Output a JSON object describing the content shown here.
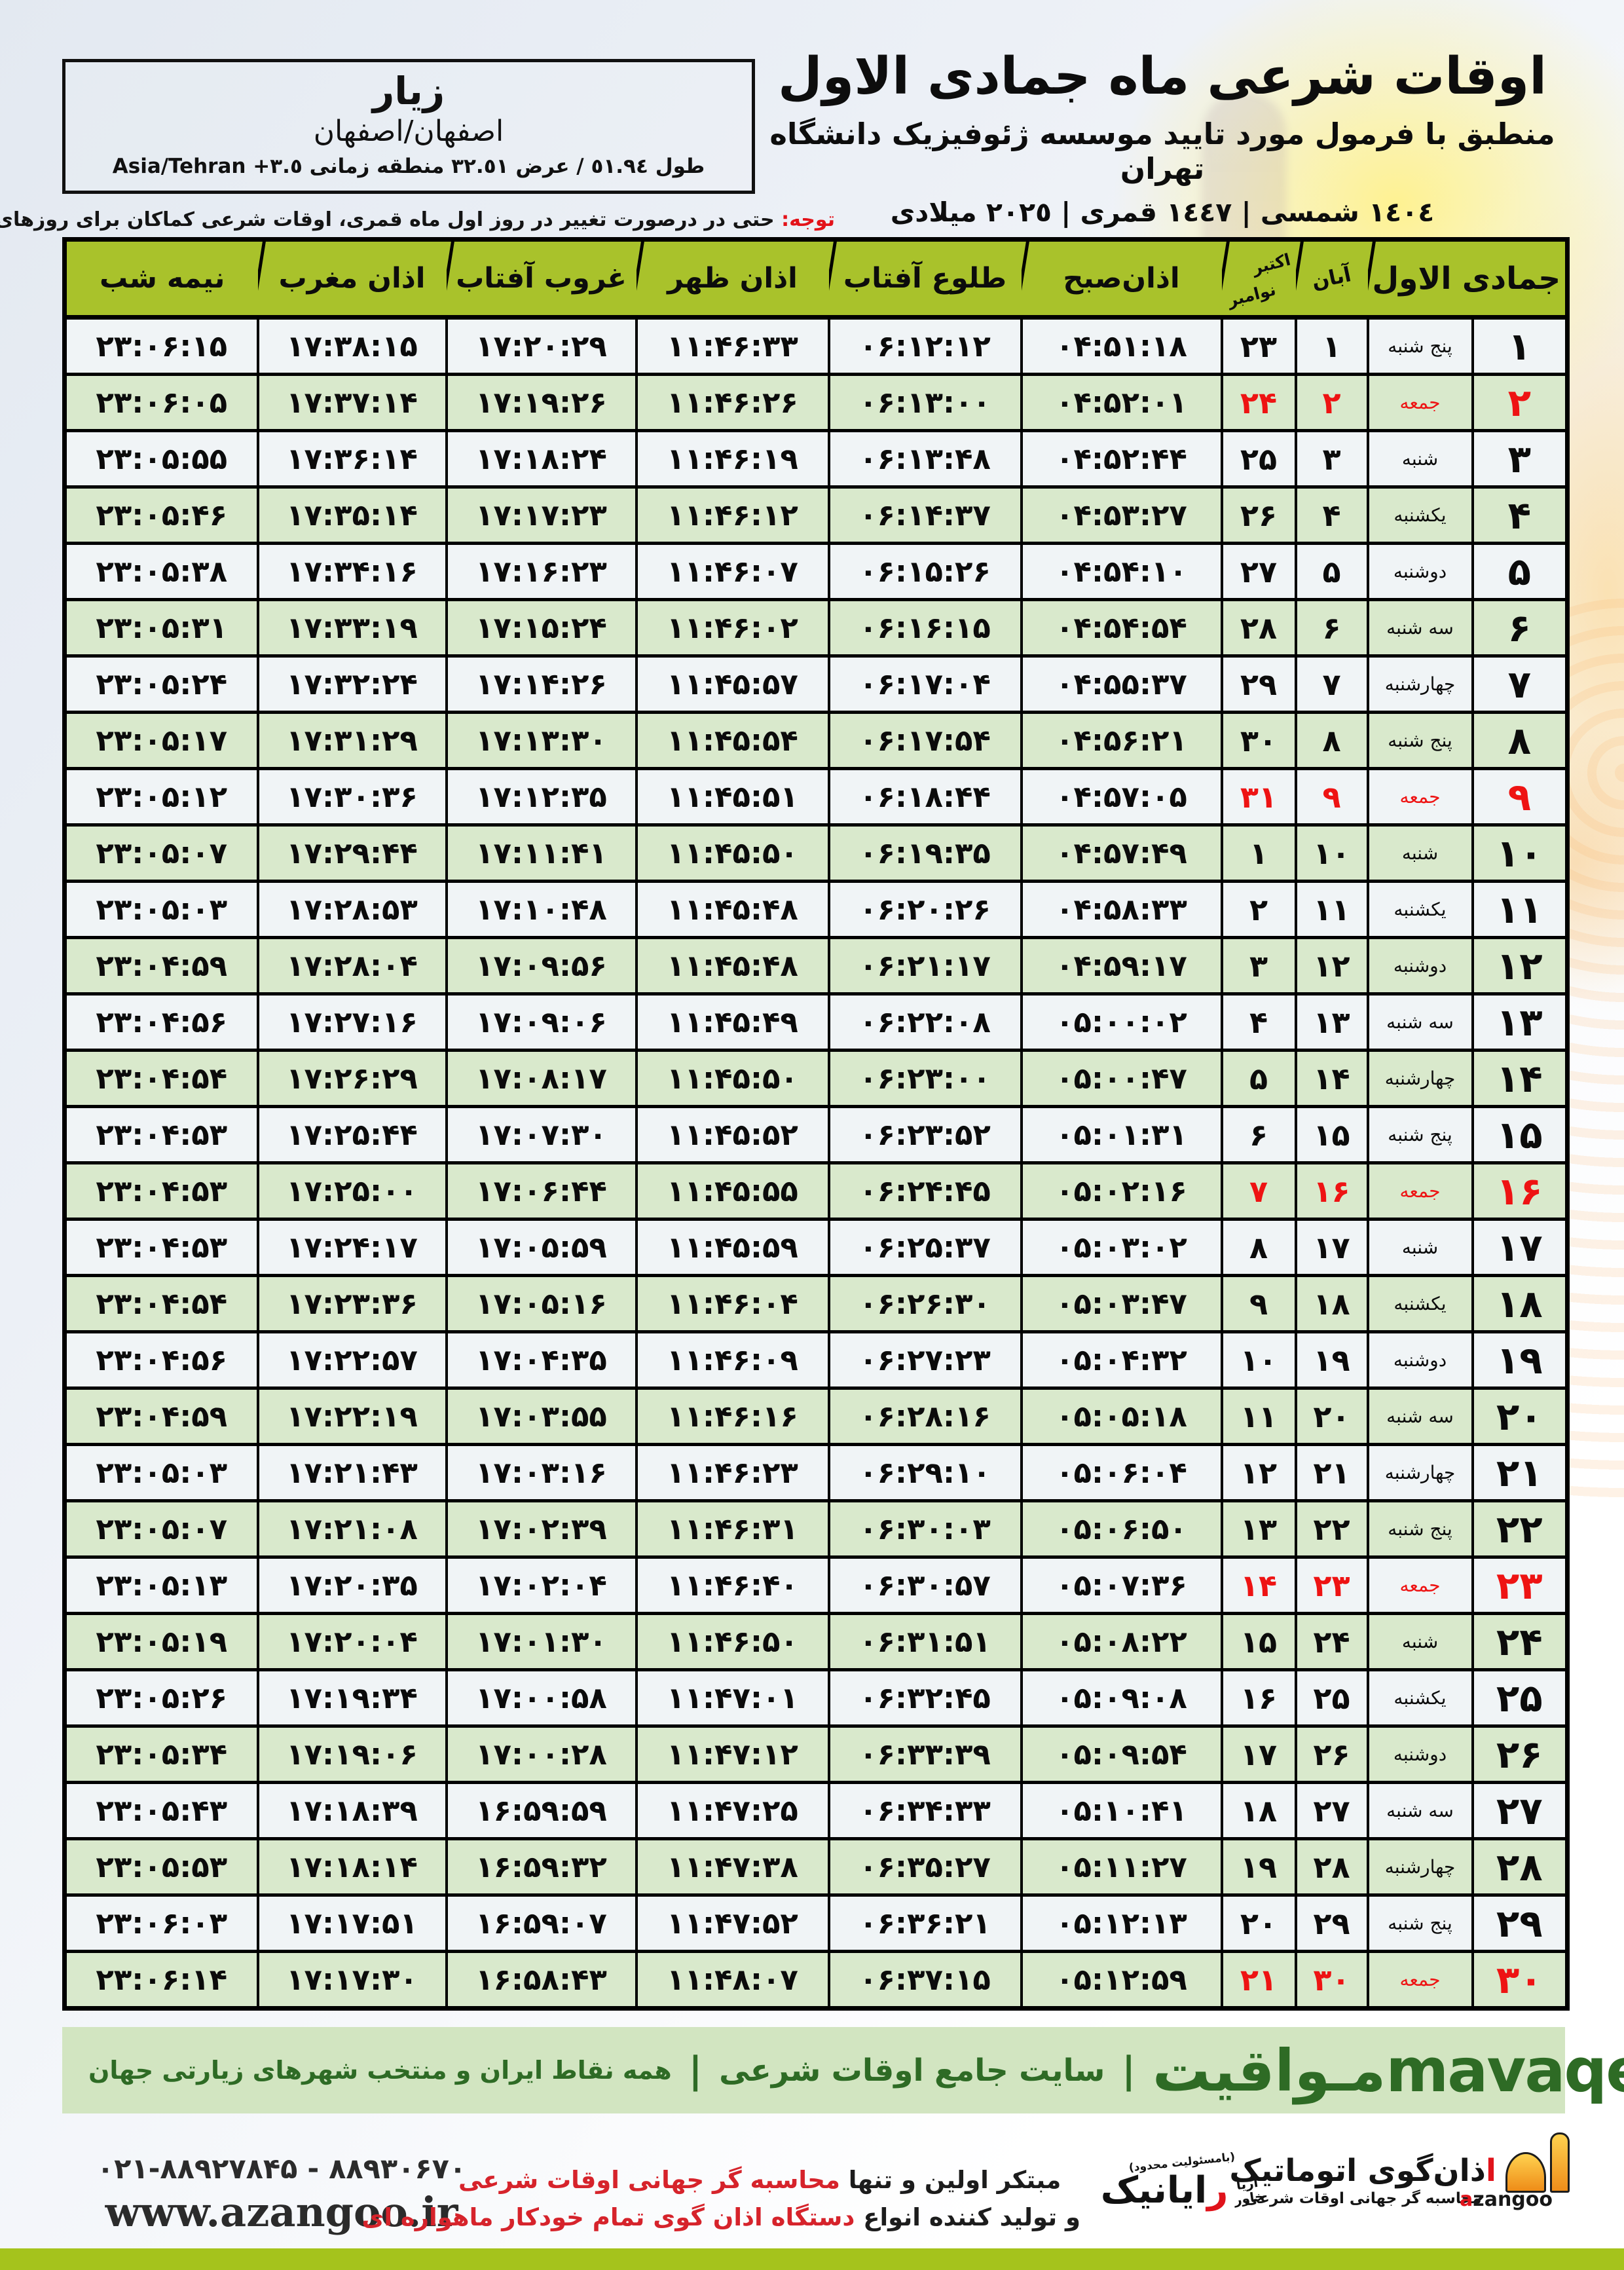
{
  "colors": {
    "header_green": "#a9c22b",
    "row_green": "#d9e9cc",
    "row_white": "#f0f4f6",
    "friday_red": "#ee1313",
    "band_bg": "#d2e5c1",
    "band_text": "#2e6b25",
    "bottom_bar": "#a5c31c",
    "logo_orange": "#ef8d1a"
  },
  "location_box": {
    "city": "زیار",
    "province": "اصفهان/اصفهان",
    "geo": "طول ٥١.٩٤ / عرض ٣٢.٥١ منطقه زمانی ٣.٥+ Asia/Tehran"
  },
  "header": {
    "title": "اوقات شرعی ماه جمادی الاول",
    "subtitle": "منطبق با فرمول مورد تایید موسسه ژئوفیزیک دانشگاه تهران",
    "date_line": "١٤٠٤ شمسی | ١٤٤٧ قمری | ٢٠٢٥ میلادی"
  },
  "notice": {
    "label": "توجه:",
    "text": " حتی در درصورت تغییر در روز اول ماه قمری، اوقات شرعی کماکان برای روزهای شمسی و میلادی معتبر است."
  },
  "table": {
    "headers": {
      "month": "جمادی الاول",
      "aban": "آبان",
      "oct": "اکتبر",
      "nov": "نوامبر",
      "sobh": "اذان‌صبح",
      "tolu": "طلوع آفتاب",
      "zohr": "اذان ظهر",
      "ghorub": "غروب آفتاب",
      "maghrib": "اذان مغرب",
      "shab": "نیمه شب"
    },
    "column_keys": [
      "d",
      "w",
      "aban",
      "greg",
      "sobh",
      "tolu",
      "zohr",
      "ghorub",
      "maghrib",
      "shab"
    ],
    "column_classes": [
      "c-day",
      "c-week",
      "c-aban",
      "c-greg",
      "c-time",
      "c-time",
      "c-time",
      "c-time",
      "c-time",
      "c-time"
    ],
    "rows": [
      {
        "d": "۱",
        "w": "پنج شنبه",
        "aban": "۱",
        "greg": "۲۳",
        "sobh": "۰۴:۵۱:۱۸",
        "tolu": "۰۶:۱۲:۱۲",
        "zohr": "۱۱:۴۶:۳۳",
        "ghorub": "۱۷:۲۰:۲۹",
        "maghrib": "۱۷:۳۸:۱۵",
        "shab": "۲۳:۰۶:۱۵",
        "friday": false
      },
      {
        "d": "۲",
        "w": "جمعه",
        "aban": "۲",
        "greg": "۲۴",
        "sobh": "۰۴:۵۲:۰۱",
        "tolu": "۰۶:۱۳:۰۰",
        "zohr": "۱۱:۴۶:۲۶",
        "ghorub": "۱۷:۱۹:۲۶",
        "maghrib": "۱۷:۳۷:۱۴",
        "shab": "۲۳:۰۶:۰۵",
        "friday": true
      },
      {
        "d": "۳",
        "w": "شنبه",
        "aban": "۳",
        "greg": "۲۵",
        "sobh": "۰۴:۵۲:۴۴",
        "tolu": "۰۶:۱۳:۴۸",
        "zohr": "۱۱:۴۶:۱۹",
        "ghorub": "۱۷:۱۸:۲۴",
        "maghrib": "۱۷:۳۶:۱۴",
        "shab": "۲۳:۰۵:۵۵",
        "friday": false
      },
      {
        "d": "۴",
        "w": "یکشنبه",
        "aban": "۴",
        "greg": "۲۶",
        "sobh": "۰۴:۵۳:۲۷",
        "tolu": "۰۶:۱۴:۳۷",
        "zohr": "۱۱:۴۶:۱۲",
        "ghorub": "۱۷:۱۷:۲۳",
        "maghrib": "۱۷:۳۵:۱۴",
        "shab": "۲۳:۰۵:۴۶",
        "friday": false
      },
      {
        "d": "۵",
        "w": "دوشنبه",
        "aban": "۵",
        "greg": "۲۷",
        "sobh": "۰۴:۵۴:۱۰",
        "tolu": "۰۶:۱۵:۲۶",
        "zohr": "۱۱:۴۶:۰۷",
        "ghorub": "۱۷:۱۶:۲۳",
        "maghrib": "۱۷:۳۴:۱۶",
        "shab": "۲۳:۰۵:۳۸",
        "friday": false
      },
      {
        "d": "۶",
        "w": "سه شنبه",
        "aban": "۶",
        "greg": "۲۸",
        "sobh": "۰۴:۵۴:۵۴",
        "tolu": "۰۶:۱۶:۱۵",
        "zohr": "۱۱:۴۶:۰۲",
        "ghorub": "۱۷:۱۵:۲۴",
        "maghrib": "۱۷:۳۳:۱۹",
        "shab": "۲۳:۰۵:۳۱",
        "friday": false
      },
      {
        "d": "۷",
        "w": "چهارشنبه",
        "aban": "۷",
        "greg": "۲۹",
        "sobh": "۰۴:۵۵:۳۷",
        "tolu": "۰۶:۱۷:۰۴",
        "zohr": "۱۱:۴۵:۵۷",
        "ghorub": "۱۷:۱۴:۲۶",
        "maghrib": "۱۷:۳۲:۲۴",
        "shab": "۲۳:۰۵:۲۴",
        "friday": false
      },
      {
        "d": "۸",
        "w": "پنج شنبه",
        "aban": "۸",
        "greg": "۳۰",
        "sobh": "۰۴:۵۶:۲۱",
        "tolu": "۰۶:۱۷:۵۴",
        "zohr": "۱۱:۴۵:۵۴",
        "ghorub": "۱۷:۱۳:۳۰",
        "maghrib": "۱۷:۳۱:۲۹",
        "shab": "۲۳:۰۵:۱۷",
        "friday": false
      },
      {
        "d": "۹",
        "w": "جمعه",
        "aban": "۹",
        "greg": "۳۱",
        "sobh": "۰۴:۵۷:۰۵",
        "tolu": "۰۶:۱۸:۴۴",
        "zohr": "۱۱:۴۵:۵۱",
        "ghorub": "۱۷:۱۲:۳۵",
        "maghrib": "۱۷:۳۰:۳۶",
        "shab": "۲۳:۰۵:۱۲",
        "friday": true
      },
      {
        "d": "۱۰",
        "w": "شنبه",
        "aban": "۱۰",
        "greg": "۱",
        "sobh": "۰۴:۵۷:۴۹",
        "tolu": "۰۶:۱۹:۳۵",
        "zohr": "۱۱:۴۵:۵۰",
        "ghorub": "۱۷:۱۱:۴۱",
        "maghrib": "۱۷:۲۹:۴۴",
        "shab": "۲۳:۰۵:۰۷",
        "friday": false
      },
      {
        "d": "۱۱",
        "w": "یکشنبه",
        "aban": "۱۱",
        "greg": "۲",
        "sobh": "۰۴:۵۸:۳۳",
        "tolu": "۰۶:۲۰:۲۶",
        "zohr": "۱۱:۴۵:۴۸",
        "ghorub": "۱۷:۱۰:۴۸",
        "maghrib": "۱۷:۲۸:۵۳",
        "shab": "۲۳:۰۵:۰۳",
        "friday": false
      },
      {
        "d": "۱۲",
        "w": "دوشنبه",
        "aban": "۱۲",
        "greg": "۳",
        "sobh": "۰۴:۵۹:۱۷",
        "tolu": "۰۶:۲۱:۱۷",
        "zohr": "۱۱:۴۵:۴۸",
        "ghorub": "۱۷:۰۹:۵۶",
        "maghrib": "۱۷:۲۸:۰۴",
        "shab": "۲۳:۰۴:۵۹",
        "friday": false
      },
      {
        "d": "۱۳",
        "w": "سه شنبه",
        "aban": "۱۳",
        "greg": "۴",
        "sobh": "۰۵:۰۰:۰۲",
        "tolu": "۰۶:۲۲:۰۸",
        "zohr": "۱۱:۴۵:۴۹",
        "ghorub": "۱۷:۰۹:۰۶",
        "maghrib": "۱۷:۲۷:۱۶",
        "shab": "۲۳:۰۴:۵۶",
        "friday": false
      },
      {
        "d": "۱۴",
        "w": "چهارشنبه",
        "aban": "۱۴",
        "greg": "۵",
        "sobh": "۰۵:۰۰:۴۷",
        "tolu": "۰۶:۲۳:۰۰",
        "zohr": "۱۱:۴۵:۵۰",
        "ghorub": "۱۷:۰۸:۱۷",
        "maghrib": "۱۷:۲۶:۲۹",
        "shab": "۲۳:۰۴:۵۴",
        "friday": false
      },
      {
        "d": "۱۵",
        "w": "پنج شنبه",
        "aban": "۱۵",
        "greg": "۶",
        "sobh": "۰۵:۰۱:۳۱",
        "tolu": "۰۶:۲۳:۵۲",
        "zohr": "۱۱:۴۵:۵۲",
        "ghorub": "۱۷:۰۷:۳۰",
        "maghrib": "۱۷:۲۵:۴۴",
        "shab": "۲۳:۰۴:۵۳",
        "friday": false
      },
      {
        "d": "۱۶",
        "w": "جمعه",
        "aban": "۱۶",
        "greg": "۷",
        "sobh": "۰۵:۰۲:۱۶",
        "tolu": "۰۶:۲۴:۴۵",
        "zohr": "۱۱:۴۵:۵۵",
        "ghorub": "۱۷:۰۶:۴۴",
        "maghrib": "۱۷:۲۵:۰۰",
        "shab": "۲۳:۰۴:۵۳",
        "friday": true
      },
      {
        "d": "۱۷",
        "w": "شنبه",
        "aban": "۱۷",
        "greg": "۸",
        "sobh": "۰۵:۰۳:۰۲",
        "tolu": "۰۶:۲۵:۳۷",
        "zohr": "۱۱:۴۵:۵۹",
        "ghorub": "۱۷:۰۵:۵۹",
        "maghrib": "۱۷:۲۴:۱۷",
        "shab": "۲۳:۰۴:۵۳",
        "friday": false
      },
      {
        "d": "۱۸",
        "w": "یکشنبه",
        "aban": "۱۸",
        "greg": "۹",
        "sobh": "۰۵:۰۳:۴۷",
        "tolu": "۰۶:۲۶:۳۰",
        "zohr": "۱۱:۴۶:۰۴",
        "ghorub": "۱۷:۰۵:۱۶",
        "maghrib": "۱۷:۲۳:۳۶",
        "shab": "۲۳:۰۴:۵۴",
        "friday": false
      },
      {
        "d": "۱۹",
        "w": "دوشنبه",
        "aban": "۱۹",
        "greg": "۱۰",
        "sobh": "۰۵:۰۴:۳۲",
        "tolu": "۰۶:۲۷:۲۳",
        "zohr": "۱۱:۴۶:۰۹",
        "ghorub": "۱۷:۰۴:۳۵",
        "maghrib": "۱۷:۲۲:۵۷",
        "shab": "۲۳:۰۴:۵۶",
        "friday": false
      },
      {
        "d": "۲۰",
        "w": "سه شنبه",
        "aban": "۲۰",
        "greg": "۱۱",
        "sobh": "۰۵:۰۵:۱۸",
        "tolu": "۰۶:۲۸:۱۶",
        "zohr": "۱۱:۴۶:۱۶",
        "ghorub": "۱۷:۰۳:۵۵",
        "maghrib": "۱۷:۲۲:۱۹",
        "shab": "۲۳:۰۴:۵۹",
        "friday": false
      },
      {
        "d": "۲۱",
        "w": "چهارشنبه",
        "aban": "۲۱",
        "greg": "۱۲",
        "sobh": "۰۵:۰۶:۰۴",
        "tolu": "۰۶:۲۹:۱۰",
        "zohr": "۱۱:۴۶:۲۳",
        "ghorub": "۱۷:۰۳:۱۶",
        "maghrib": "۱۷:۲۱:۴۳",
        "shab": "۲۳:۰۵:۰۳",
        "friday": false
      },
      {
        "d": "۲۲",
        "w": "پنج شنبه",
        "aban": "۲۲",
        "greg": "۱۳",
        "sobh": "۰۵:۰۶:۵۰",
        "tolu": "۰۶:۳۰:۰۳",
        "zohr": "۱۱:۴۶:۳۱",
        "ghorub": "۱۷:۰۲:۳۹",
        "maghrib": "۱۷:۲۱:۰۸",
        "shab": "۲۳:۰۵:۰۷",
        "friday": false
      },
      {
        "d": "۲۳",
        "w": "جمعه",
        "aban": "۲۳",
        "greg": "۱۴",
        "sobh": "۰۵:۰۷:۳۶",
        "tolu": "۰۶:۳۰:۵۷",
        "zohr": "۱۱:۴۶:۴۰",
        "ghorub": "۱۷:۰۲:۰۴",
        "maghrib": "۱۷:۲۰:۳۵",
        "shab": "۲۳:۰۵:۱۳",
        "friday": true
      },
      {
        "d": "۲۴",
        "w": "شنبه",
        "aban": "۲۴",
        "greg": "۱۵",
        "sobh": "۰۵:۰۸:۲۲",
        "tolu": "۰۶:۳۱:۵۱",
        "zohr": "۱۱:۴۶:۵۰",
        "ghorub": "۱۷:۰۱:۳۰",
        "maghrib": "۱۷:۲۰:۰۴",
        "shab": "۲۳:۰۵:۱۹",
        "friday": false
      },
      {
        "d": "۲۵",
        "w": "یکشنبه",
        "aban": "۲۵",
        "greg": "۱۶",
        "sobh": "۰۵:۰۹:۰۸",
        "tolu": "۰۶:۳۲:۴۵",
        "zohr": "۱۱:۴۷:۰۱",
        "ghorub": "۱۷:۰۰:۵۸",
        "maghrib": "۱۷:۱۹:۳۴",
        "shab": "۲۳:۰۵:۲۶",
        "friday": false
      },
      {
        "d": "۲۶",
        "w": "دوشنبه",
        "aban": "۲۶",
        "greg": "۱۷",
        "sobh": "۰۵:۰۹:۵۴",
        "tolu": "۰۶:۳۳:۳۹",
        "zohr": "۱۱:۴۷:۱۲",
        "ghorub": "۱۷:۰۰:۲۸",
        "maghrib": "۱۷:۱۹:۰۶",
        "shab": "۲۳:۰۵:۳۴",
        "friday": false
      },
      {
        "d": "۲۷",
        "w": "سه شنبه",
        "aban": "۲۷",
        "greg": "۱۸",
        "sobh": "۰۵:۱۰:۴۱",
        "tolu": "۰۶:۳۴:۳۳",
        "zohr": "۱۱:۴۷:۲۵",
        "ghorub": "۱۶:۵۹:۵۹",
        "maghrib": "۱۷:۱۸:۳۹",
        "shab": "۲۳:۰۵:۴۳",
        "friday": false
      },
      {
        "d": "۲۸",
        "w": "چهارشنبه",
        "aban": "۲۸",
        "greg": "۱۹",
        "sobh": "۰۵:۱۱:۲۷",
        "tolu": "۰۶:۳۵:۲۷",
        "zohr": "۱۱:۴۷:۳۸",
        "ghorub": "۱۶:۵۹:۳۲",
        "maghrib": "۱۷:۱۸:۱۴",
        "shab": "۲۳:۰۵:۵۳",
        "friday": false
      },
      {
        "d": "۲۹",
        "w": "پنج شنبه",
        "aban": "۲۹",
        "greg": "۲۰",
        "sobh": "۰۵:۱۲:۱۳",
        "tolu": "۰۶:۳۶:۲۱",
        "zohr": "۱۱:۴۷:۵۲",
        "ghorub": "۱۶:۵۹:۰۷",
        "maghrib": "۱۷:۱۷:۵۱",
        "shab": "۲۳:۰۶:۰۳",
        "friday": false
      },
      {
        "d": "۳۰",
        "w": "جمعه",
        "aban": "۳۰",
        "greg": "۲۱",
        "sobh": "۰۵:۱۲:۵۹",
        "tolu": "۰۶:۳۷:۱۵",
        "zohr": "۱۱:۴۸:۰۷",
        "ghorub": "۱۶:۵۸:۴۳",
        "maghrib": "۱۷:۱۷:۳۰",
        "shab": "۲۳:۰۶:۱۴",
        "friday": true
      }
    ]
  },
  "band": {
    "brand": "مـواقیت",
    "sep1": "|",
    "tagline1": "سایت جامع اوقات شرعی",
    "sep2": "|",
    "tagline2": "همه نقاط ایران و منتخب شهرهای زیارتی جهان",
    "domain": "mavaqeet.com"
  },
  "footer": {
    "phone": "۰۲۱-۸۸۹۲۷۸۴۵ - ۸۸۹۳۰۶۷۰",
    "website": "www.azangoo.ir",
    "line1_black": "مبتکر اولین و تنها ",
    "line1_red": "محاسبه گر جهانی اوقات شرعی",
    "line2_black": "و تولید کننده انواع ",
    "line2_red": "دستگاه اذان گوی تمام خودکار ماهواره ای",
    "rayanik_note": "(بامسئولیت محدود)",
    "rayanik_name": "رایانیک",
    "rayanik_side1": "آریا",
    "rayanik_side2": "خاور",
    "azangoo_wordmark": "azangoo",
    "azangoo_title": "اذان‌گوی اتوماتیک",
    "azangoo_tagline": "محاسبه گر جهانی اوقات شرعی"
  }
}
